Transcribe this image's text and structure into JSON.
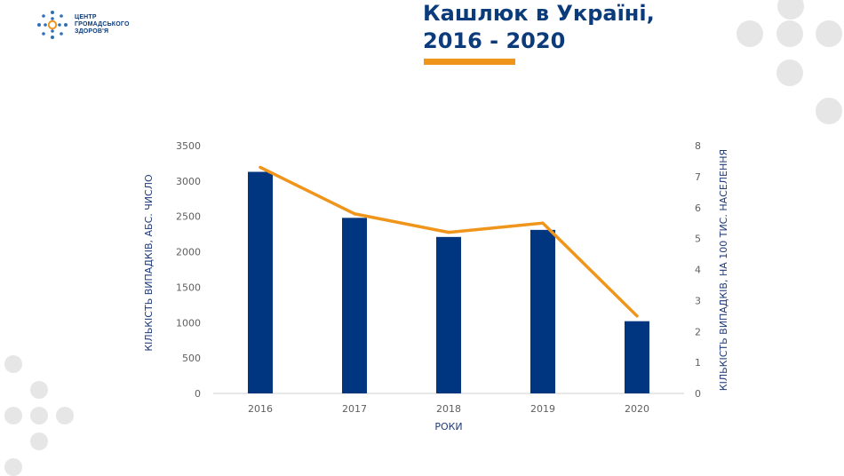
{
  "logo": {
    "text": "ЦЕНТР\nГРОМАДСЬКОГО\nЗДОРОВ'Я",
    "icon": "snowflake-dots-logo-icon"
  },
  "header": {
    "title_line1": "Кашлюк в Україні,",
    "title_line2": "2016 - 2020"
  },
  "colors": {
    "bar": "#003580",
    "line": "#f0951c",
    "title": "#0b3b7a",
    "decor": "#e6e6e6"
  },
  "chart_data": {
    "type": "bar",
    "categories": [
      "2016",
      "2017",
      "2018",
      "2019",
      "2020"
    ],
    "series": [
      {
        "type": "bar",
        "axis": "left",
        "values": [
          3130,
          2480,
          2210,
          2310,
          1020
        ]
      },
      {
        "type": "line",
        "axis": "right",
        "values": [
          7.3,
          5.8,
          5.2,
          5.5,
          2.5
        ]
      }
    ],
    "xlabel": "РОКИ",
    "ylabel": "КІЛЬКІСТЬ ВИПАДКІВ, АБС. ЧИСЛО",
    "y2label": "КІЛЬКІСТЬ ВИПАДКІВ, НА 100 ТИС. НАСЕЛЕННЯ",
    "ylim": [
      0,
      3500
    ],
    "y2lim": [
      0,
      8
    ],
    "yticks": [
      "0",
      "500",
      "1000",
      "1500",
      "2000",
      "2500",
      "3000",
      "3500"
    ],
    "y2ticks": [
      "0",
      "1",
      "2",
      "3",
      "4",
      "5",
      "6",
      "7",
      "8"
    ],
    "grid": false,
    "legend": "none"
  }
}
